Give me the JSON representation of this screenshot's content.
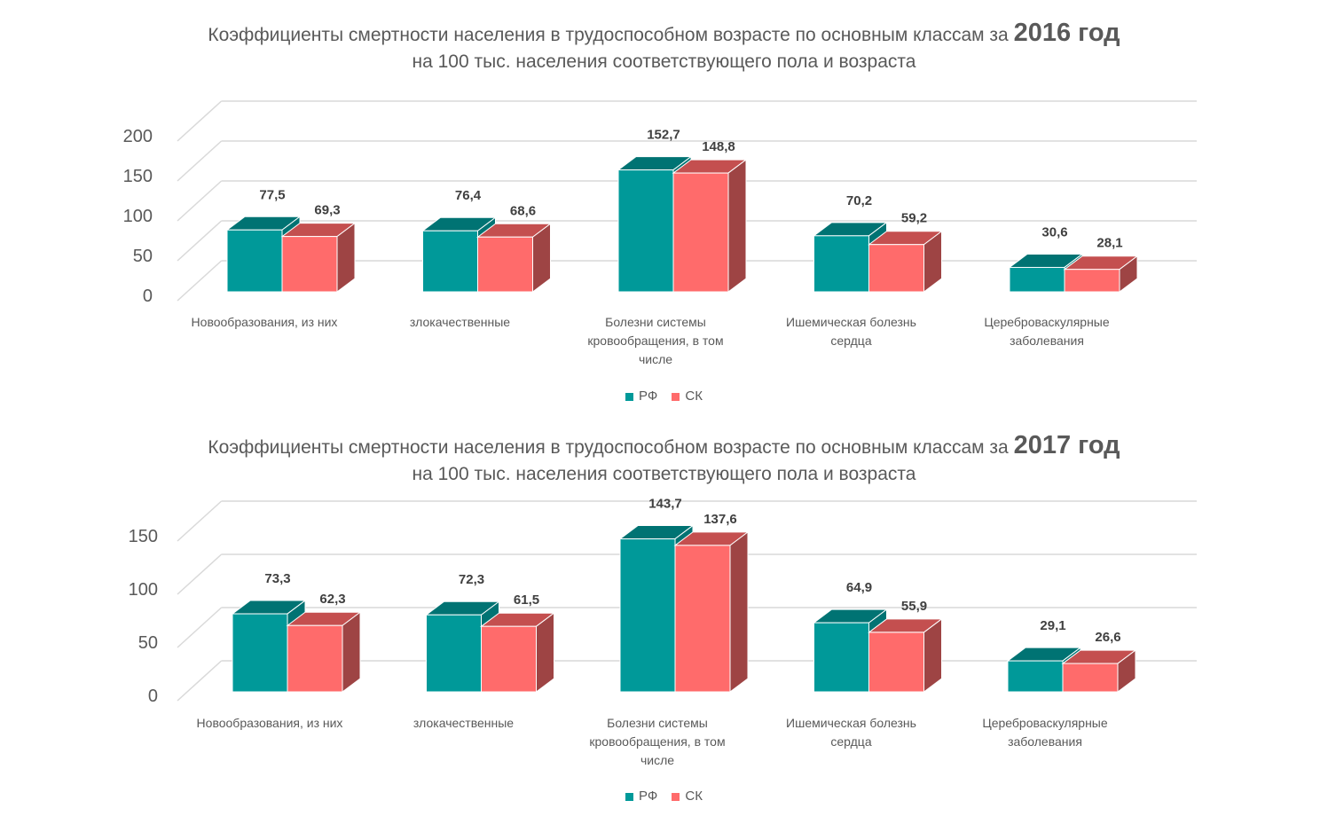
{
  "colors": {
    "rf": "#009999",
    "rf_top": "#007373",
    "sk": "#ff6b6b",
    "sk_top": "#c44f4f",
    "sk_side": "#9e4444",
    "rf_side": "#007373",
    "grid": "#d9d9d9"
  },
  "chart_data": [
    {
      "type": "bar",
      "title_prefix": "Коэффициенты смертности населения в трудоспособном возрасте по основным классам за",
      "title_year": "2016 год",
      "subtitle": "на 100 тыс. населения соответствующего пола и возраста",
      "categories": [
        [
          "Новообразования, из них"
        ],
        [
          "злокачественные"
        ],
        [
          "Болезни системы",
          "кровообращения, в том",
          "числе"
        ],
        [
          "Ишемическая болезнь",
          "сердца"
        ],
        [
          "Цереброваскулярные",
          "заболевания"
        ]
      ],
      "series": [
        {
          "name": "РФ",
          "values": [
            77.5,
            76.4,
            152.7,
            70.2,
            30.6
          ],
          "labels": [
            "77,5",
            "76,4",
            "152,7",
            "70,2",
            "30,6"
          ]
        },
        {
          "name": "СК",
          "values": [
            69.3,
            68.6,
            148.8,
            59.2,
            28.1
          ],
          "labels": [
            "69,3",
            "68,6",
            "148,8",
            "59,2",
            "28,1"
          ]
        }
      ],
      "yticks": [
        "0",
        "50",
        "100",
        "150",
        "200"
      ],
      "ylim": [
        0,
        200
      ],
      "grid": true,
      "legend": "bottom"
    },
    {
      "type": "bar",
      "title_prefix": "Коэффициенты смертности населения в трудоспособном возрасте по основным классам за",
      "title_year": "2017 год",
      "subtitle": "на 100 тыс. населения соответствующего пола и возраста",
      "categories": [
        [
          "Новообразования, из них"
        ],
        [
          "злокачественные"
        ],
        [
          "Болезни системы",
          "кровообращения, в том",
          "числе"
        ],
        [
          "Ишемическая болезнь",
          "сердца"
        ],
        [
          "Цереброваскулярные",
          "заболевания"
        ]
      ],
      "series": [
        {
          "name": "РФ",
          "values": [
            73.3,
            72.3,
            143.7,
            64.9,
            29.1
          ],
          "labels": [
            "73,3",
            "72,3",
            "143,7",
            "64,9",
            "29,1"
          ]
        },
        {
          "name": "СК",
          "values": [
            62.3,
            61.5,
            137.6,
            55.9,
            26.6
          ],
          "labels": [
            "62,3",
            "61,5",
            "137,6",
            "55,9",
            "26,6"
          ]
        }
      ],
      "yticks": [
        "0",
        "50",
        "100",
        "150"
      ],
      "ylim": [
        0,
        150
      ],
      "grid": true,
      "legend": "bottom"
    }
  ]
}
